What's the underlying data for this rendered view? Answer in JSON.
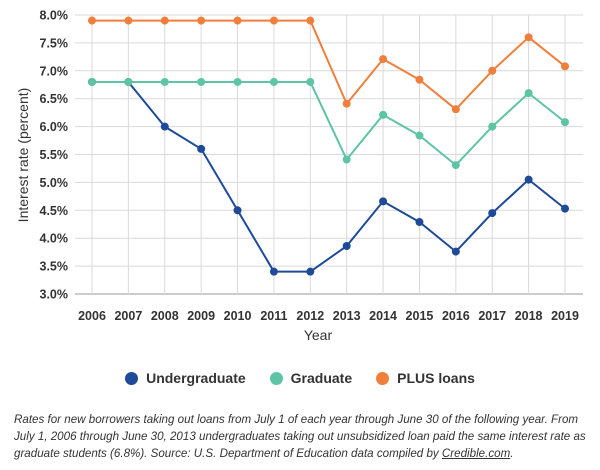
{
  "chart_data": {
    "type": "line",
    "x": [
      "2006",
      "2007",
      "2008",
      "2009",
      "2010",
      "2011",
      "2012",
      "2013",
      "2014",
      "2015",
      "2016",
      "2017",
      "2018",
      "2019"
    ],
    "series": [
      {
        "name": "Undergraduate",
        "color": "#1e4a99",
        "values": [
          6.8,
          6.8,
          6.0,
          5.6,
          4.5,
          3.4,
          3.4,
          3.86,
          4.66,
          4.29,
          3.76,
          4.45,
          5.05,
          4.53
        ]
      },
      {
        "name": "Graduate",
        "color": "#5dc4a4",
        "values": [
          6.8,
          6.8,
          6.8,
          6.8,
          6.8,
          6.8,
          6.8,
          5.41,
          6.21,
          5.84,
          5.31,
          6.0,
          6.6,
          6.08
        ]
      },
      {
        "name": "PLUS loans",
        "color": "#f07f3c",
        "values": [
          7.9,
          7.9,
          7.9,
          7.9,
          7.9,
          7.9,
          7.9,
          6.41,
          7.21,
          6.84,
          6.31,
          7.0,
          7.6,
          7.08
        ]
      }
    ],
    "xlabel": "Year",
    "ylabel": "Interest rate (percent)",
    "ylim": [
      3.0,
      8.0
    ],
    "yticks": [
      3.0,
      3.5,
      4.0,
      4.5,
      5.0,
      5.5,
      6.0,
      6.5,
      7.0,
      7.5,
      8.0
    ],
    "ytick_labels": [
      "3.0%",
      "3.5%",
      "4.0%",
      "4.5%",
      "5.0%",
      "5.5%",
      "6.0%",
      "6.5%",
      "7.0%",
      "7.5%",
      "8.0%"
    ],
    "grid": true,
    "legend_position": "bottom"
  },
  "caption": {
    "text_before_link": "Rates for new borrowers taking out loans from July 1 of each year through June 30 of the following year. From July 1, 2006 through June 30, 2013 undergraduates taking out unsubsidized loan paid the same interest rate as graduate students (6.8%). Source: U.S. Department of Education data compiled by ",
    "link_text": "Credible.com",
    "text_after_link": "."
  }
}
